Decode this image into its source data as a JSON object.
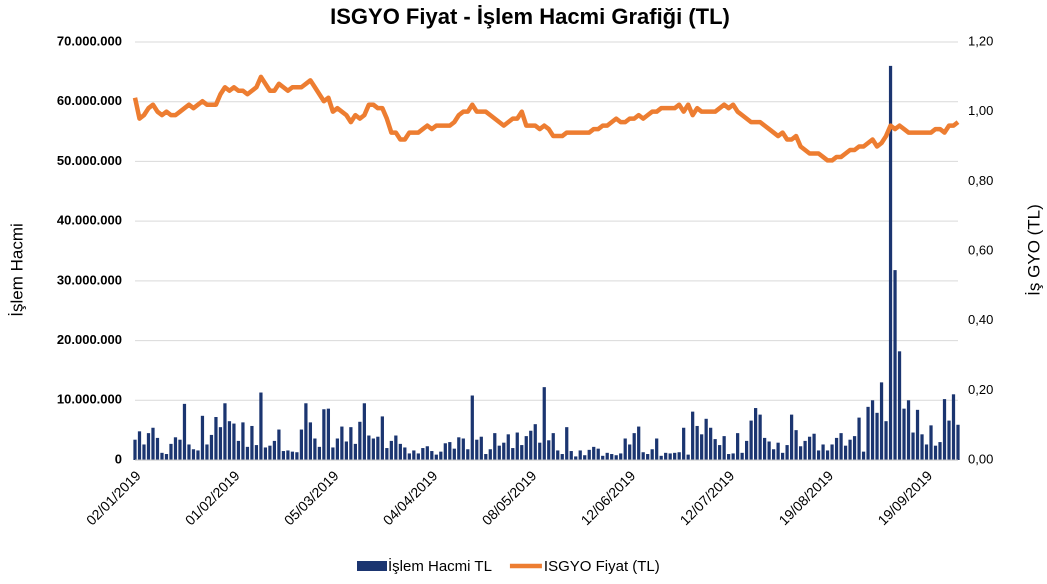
{
  "chart_data": {
    "type": "bar",
    "title": "ISGYO Fiyat - İşlem Hacmi Grafiği (TL)",
    "ylabel": "İşlem Hacmi",
    "y2label": "İş GYO (TL)",
    "categories": [
      "02/01/2019",
      null,
      null,
      null,
      null,
      null,
      null,
      null,
      null,
      null,
      null,
      null,
      null,
      null,
      null,
      null,
      null,
      null,
      null,
      null,
      null,
      null,
      "01/02/2019",
      null,
      null,
      null,
      null,
      null,
      null,
      null,
      null,
      null,
      null,
      null,
      null,
      null,
      null,
      null,
      null,
      null,
      null,
      null,
      null,
      null,
      "05/03/2019",
      null,
      null,
      null,
      null,
      null,
      null,
      null,
      null,
      null,
      null,
      null,
      null,
      null,
      null,
      null,
      null,
      null,
      null,
      null,
      null,
      null,
      "04/04/2019",
      null,
      null,
      null,
      null,
      null,
      null,
      null,
      null,
      null,
      null,
      null,
      null,
      null,
      null,
      null,
      null,
      null,
      null,
      null,
      null,
      null,
      "08/05/2019",
      null,
      null,
      null,
      null,
      null,
      null,
      null,
      null,
      null,
      null,
      null,
      null,
      null,
      null,
      null,
      null,
      null,
      null,
      null,
      null,
      null,
      "12/06/2019",
      null,
      null,
      null,
      null,
      null,
      null,
      null,
      null,
      null,
      null,
      null,
      null,
      null,
      null,
      null,
      null,
      null,
      null,
      null,
      null,
      null,
      "12/07/2019",
      null,
      null,
      null,
      null,
      null,
      null,
      null,
      null,
      null,
      null,
      null,
      null,
      null,
      null,
      null,
      null,
      null,
      null,
      null,
      null,
      null,
      "19/08/2019",
      null,
      null,
      null,
      null,
      null,
      null,
      null,
      null,
      null,
      null,
      null,
      null,
      null,
      null,
      null,
      null,
      null,
      null,
      null,
      null,
      null,
      "19/09/2019",
      null,
      null,
      null,
      null,
      null,
      null,
      null
    ],
    "series": [
      {
        "name": "İşlem Hacmi TL",
        "type": "bar",
        "color": "#1b3570",
        "values": [
          3400000,
          4800000,
          2600000,
          4500000,
          5400000,
          3700000,
          1200000,
          1000000,
          2700000,
          3800000,
          3400000,
          9400000,
          2600000,
          1800000,
          1600000,
          7400000,
          2600000,
          4200000,
          7200000,
          5500000,
          9500000,
          6500000,
          6100000,
          3200000,
          6300000,
          2200000,
          5700000,
          2500000,
          11300000,
          2100000,
          2400000,
          3200000,
          5100000,
          1500000,
          1600000,
          1400000,
          1300000,
          5100000,
          9500000,
          6300000,
          3600000,
          2200000,
          8500000,
          8600000,
          2100000,
          3600000,
          5600000,
          3100000,
          5500000,
          2700000,
          6400000,
          9500000,
          4100000,
          3600000,
          3900000,
          7300000,
          2000000,
          3200000,
          4100000,
          2700000,
          2100000,
          1100000,
          1600000,
          1100000,
          2000000,
          2300000,
          1500000,
          900000,
          1400000,
          2800000,
          3000000,
          1900000,
          3800000,
          3600000,
          1800000,
          10800000,
          3400000,
          3900000,
          1000000,
          1800000,
          4500000,
          2400000,
          2900000,
          4300000,
          2000000,
          4600000,
          2500000,
          4000000,
          4900000,
          6000000,
          2900000,
          12200000,
          3300000,
          4500000,
          1600000,
          1000000,
          5500000,
          1500000,
          600000,
          1600000,
          800000,
          1700000,
          2200000,
          1900000,
          700000,
          1200000,
          1000000,
          800000,
          1100000,
          3600000,
          2600000,
          4500000,
          5600000,
          1300000,
          1000000,
          1800000,
          3600000,
          700000,
          1200000,
          1100000,
          1200000,
          1300000,
          5400000,
          900000,
          8100000,
          5700000,
          4300000,
          6900000,
          5400000,
          3500000,
          2500000,
          4000000,
          1000000,
          1100000,
          4500000,
          1200000,
          3200000,
          6600000,
          8700000,
          7600000,
          3700000,
          3100000,
          1800000,
          2900000,
          1200000,
          2500000,
          7600000,
          5000000,
          2300000,
          3200000,
          3900000,
          4400000,
          1600000,
          2600000,
          1600000,
          2600000,
          3700000,
          4500000,
          2400000,
          3400000,
          4000000,
          7100000,
          1400000,
          8900000,
          10000000,
          7900000,
          13000000,
          6500000,
          66000000,
          31800000,
          18200000,
          8600000,
          10000000,
          4600000,
          8400000,
          4300000,
          2600000,
          5800000,
          2400000,
          3000000,
          10200000,
          6600000,
          11000000,
          5900000
        ]
      },
      {
        "name": "ISGYO Fiyat (TL)",
        "type": "line",
        "axis": "y2",
        "color": "#ed7d31",
        "values": [
          1.04,
          0.98,
          0.99,
          1.01,
          1.02,
          1.0,
          0.99,
          1.0,
          0.99,
          0.99,
          1.0,
          1.01,
          1.02,
          1.01,
          1.02,
          1.03,
          1.02,
          1.02,
          1.02,
          1.05,
          1.07,
          1.06,
          1.07,
          1.06,
          1.06,
          1.05,
          1.06,
          1.07,
          1.1,
          1.08,
          1.06,
          1.06,
          1.08,
          1.07,
          1.06,
          1.07,
          1.07,
          1.07,
          1.08,
          1.09,
          1.07,
          1.05,
          1.03,
          1.04,
          1.0,
          1.01,
          1.0,
          0.99,
          0.97,
          0.99,
          0.98,
          0.99,
          1.02,
          1.02,
          1.01,
          1.01,
          0.98,
          0.94,
          0.94,
          0.92,
          0.92,
          0.94,
          0.94,
          0.94,
          0.95,
          0.96,
          0.95,
          0.96,
          0.96,
          0.96,
          0.96,
          0.97,
          0.99,
          1.0,
          1.0,
          1.02,
          1.0,
          1.0,
          1.0,
          0.99,
          0.98,
          0.97,
          0.96,
          0.97,
          0.98,
          0.98,
          1.0,
          0.96,
          0.96,
          0.96,
          0.95,
          0.96,
          0.95,
          0.93,
          0.93,
          0.93,
          0.94,
          0.94,
          0.94,
          0.94,
          0.94,
          0.94,
          0.95,
          0.95,
          0.96,
          0.96,
          0.97,
          0.98,
          0.97,
          0.97,
          0.98,
          0.98,
          0.99,
          0.98,
          0.99,
          1.0,
          1.0,
          1.01,
          1.01,
          1.01,
          1.01,
          1.02,
          1.0,
          1.02,
          0.99,
          1.01,
          1.0,
          1.0,
          1.0,
          1.0,
          1.01,
          1.02,
          1.01,
          1.02,
          1.0,
          0.99,
          0.98,
          0.97,
          0.97,
          0.97,
          0.96,
          0.95,
          0.94,
          0.93,
          0.94,
          0.92,
          0.92,
          0.93,
          0.9,
          0.89,
          0.88,
          0.88,
          0.88,
          0.87,
          0.86,
          0.86,
          0.87,
          0.87,
          0.88,
          0.89,
          0.89,
          0.9,
          0.9,
          0.91,
          0.92,
          0.9,
          0.91,
          0.93,
          0.96,
          0.95,
          0.96,
          0.95,
          0.94,
          0.94,
          0.94,
          0.94,
          0.94,
          0.94,
          0.95,
          0.95,
          0.94,
          0.96,
          0.96,
          0.97
        ]
      }
    ],
    "ylim": [
      0,
      70000000
    ],
    "yticks": [
      {
        "value": 0,
        "label": "0"
      },
      {
        "value": 10000000,
        "label": "10.000.000"
      },
      {
        "value": 20000000,
        "label": "20.000.000"
      },
      {
        "value": 30000000,
        "label": "30.000.000"
      },
      {
        "value": 40000000,
        "label": "40.000.000"
      },
      {
        "value": 50000000,
        "label": "50.000.000"
      },
      {
        "value": 60000000,
        "label": "60.000.000"
      },
      {
        "value": 70000000,
        "label": "70.000.000"
      }
    ],
    "y2lim": [
      0,
      1.2
    ],
    "y2ticks": [
      {
        "value": 0,
        "label": "0,00"
      },
      {
        "value": 0.2,
        "label": "0,20"
      },
      {
        "value": 0.4,
        "label": "0,40"
      },
      {
        "value": 0.6,
        "label": "0,60"
      },
      {
        "value": 0.8,
        "label": "0,80"
      },
      {
        "value": 1.0,
        "label": "1,00"
      },
      {
        "value": 1.2,
        "label": "1,20"
      }
    ],
    "grid": true,
    "legend": "bottom"
  }
}
